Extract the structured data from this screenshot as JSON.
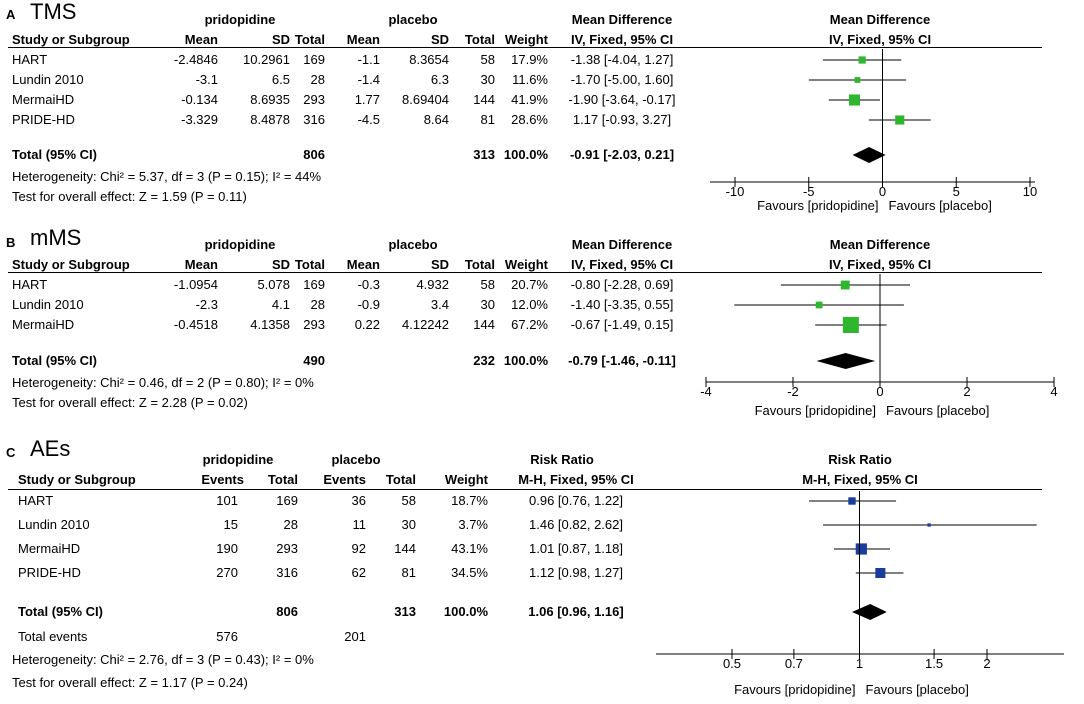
{
  "chart_data": [
    {
      "type": "forest",
      "panel": "A",
      "title": "TMS",
      "group1": "pridopidine",
      "group2": "placebo",
      "columns": [
        "Study or Subgroup",
        "Mean",
        "SD",
        "Total",
        "Mean",
        "SD",
        "Total",
        "Weight",
        "IV, Fixed, 95% CI"
      ],
      "effect_header": "Mean Difference",
      "effect_method": "IV, Fixed, 95% CI",
      "studies": [
        {
          "name": "HART",
          "m1": "-2.4846",
          "sd1": "10.2961",
          "n1": "169",
          "m2": "-1.1",
          "sd2": "8.3654",
          "n2": "58",
          "weight": "17.9%",
          "ci": "-1.38 [-4.04, 1.27]",
          "est": -1.38,
          "lo": -4.04,
          "hi": 1.27,
          "w": 17.9
        },
        {
          "name": "Lundin 2010",
          "m1": "-3.1",
          "sd1": "6.5",
          "n1": "28",
          "m2": "-1.4",
          "sd2": "6.3",
          "n2": "30",
          "weight": "11.6%",
          "ci": "-1.70 [-5.00, 1.60]",
          "est": -1.7,
          "lo": -5.0,
          "hi": 1.6,
          "w": 11.6
        },
        {
          "name": "MermaiHD",
          "m1": "-0.134",
          "sd1": "8.6935",
          "n1": "293",
          "m2": "1.77",
          "sd2": "8.69404",
          "n2": "144",
          "weight": "41.9%",
          "ci": "-1.90 [-3.64, -0.17]",
          "est": -1.9,
          "lo": -3.64,
          "hi": -0.17,
          "w": 41.9
        },
        {
          "name": "PRIDE-HD",
          "m1": "-3.329",
          "sd1": "8.4878",
          "n1": "316",
          "m2": "-4.5",
          "sd2": "8.64",
          "n2": "81",
          "weight": "28.6%",
          "ci": "1.17 [-0.93, 3.27]",
          "est": 1.17,
          "lo": -0.93,
          "hi": 3.27,
          "w": 28.6
        }
      ],
      "total": {
        "label": "Total (95% CI)",
        "n1": "806",
        "n2": "313",
        "weight": "100.0%",
        "ci": "-0.91 [-2.03, 0.21]",
        "est": -0.91,
        "lo": -2.03,
        "hi": 0.21
      },
      "heterogeneity": "Heterogeneity: Chi² = 5.37, df = 3 (P = 0.15); I² = 44%",
      "overall": "Test for overall effect: Z = 1.59 (P = 0.11)",
      "axis": {
        "scale": "linear",
        "min": -10,
        "max": 10,
        "ticks": [
          -10,
          -5,
          0,
          5,
          10
        ],
        "tick_labels": [
          "-10",
          "-5",
          "0",
          "5",
          "10"
        ]
      },
      "favours_left": "Favours [pridopidine]",
      "favours_right": "Favours [placebo]"
    },
    {
      "type": "forest",
      "panel": "B",
      "title": "mMS",
      "group1": "pridopidine",
      "group2": "placebo",
      "columns": [
        "Study or Subgroup",
        "Mean",
        "SD",
        "Total",
        "Mean",
        "SD",
        "Total",
        "Weight",
        "IV, Fixed, 95% CI"
      ],
      "effect_header": "Mean Difference",
      "effect_method": "IV, Fixed, 95% CI",
      "studies": [
        {
          "name": "HART",
          "m1": "-1.0954",
          "sd1": "5.078",
          "n1": "169",
          "m2": "-0.3",
          "sd2": "4.932",
          "n2": "58",
          "weight": "20.7%",
          "ci": "-0.80 [-2.28, 0.69]",
          "est": -0.8,
          "lo": -2.28,
          "hi": 0.69,
          "w": 20.7
        },
        {
          "name": "Lundin 2010",
          "m1": "-2.3",
          "sd1": "4.1",
          "n1": "28",
          "m2": "-0.9",
          "sd2": "3.4",
          "n2": "30",
          "weight": "12.0%",
          "ci": "-1.40 [-3.35, 0.55]",
          "est": -1.4,
          "lo": -3.35,
          "hi": 0.55,
          "w": 12.0
        },
        {
          "name": "MermaiHD",
          "m1": "-0.4518",
          "sd1": "4.1358",
          "n1": "293",
          "m2": "0.22",
          "sd2": "4.12242",
          "n2": "144",
          "weight": "67.2%",
          "ci": "-0.67 [-1.49, 0.15]",
          "est": -0.67,
          "lo": -1.49,
          "hi": 0.15,
          "w": 67.2
        }
      ],
      "total": {
        "label": "Total (95% CI)",
        "n1": "490",
        "n2": "232",
        "weight": "100.0%",
        "ci": "-0.79 [-1.46, -0.11]",
        "est": -0.79,
        "lo": -1.46,
        "hi": -0.11
      },
      "heterogeneity": "Heterogeneity: Chi² = 0.46, df = 2 (P = 0.80); I² = 0%",
      "overall": "Test for overall effect: Z = 2.28 (P = 0.02)",
      "axis": {
        "scale": "linear",
        "min": -4,
        "max": 4,
        "ticks": [
          -4,
          -2,
          0,
          2,
          4
        ],
        "tick_labels": [
          "-4",
          "-2",
          "0",
          "2",
          "4"
        ]
      },
      "favours_left": "Favours [pridopidine]",
      "favours_right": "Favours [placebo]"
    },
    {
      "type": "forest",
      "panel": "C",
      "title": "AEs",
      "group1": "pridopidine",
      "group2": "placebo",
      "columns": [
        "Study or Subgroup",
        "Events",
        "Total",
        "Events",
        "Total",
        "Weight",
        "M-H, Fixed, 95% CI"
      ],
      "effect_header": "Risk Ratio",
      "effect_method": "M-H, Fixed, 95% CI",
      "studies": [
        {
          "name": "HART",
          "e1": "101",
          "n1": "169",
          "e2": "36",
          "n2": "58",
          "weight": "18.7%",
          "ci": "0.96 [0.76, 1.22]",
          "est": 0.96,
          "lo": 0.76,
          "hi": 1.22,
          "w": 18.7
        },
        {
          "name": "Lundin 2010",
          "e1": "15",
          "n1": "28",
          "e2": "11",
          "n2": "30",
          "weight": "3.7%",
          "ci": "1.46 [0.82, 2.62]",
          "est": 1.46,
          "lo": 0.82,
          "hi": 2.62,
          "w": 3.7
        },
        {
          "name": "MermaiHD",
          "e1": "190",
          "n1": "293",
          "e2": "92",
          "n2": "144",
          "weight": "43.1%",
          "ci": "1.01 [0.87, 1.18]",
          "est": 1.01,
          "lo": 0.87,
          "hi": 1.18,
          "w": 43.1
        },
        {
          "name": "PRIDE-HD",
          "e1": "270",
          "n1": "316",
          "e2": "62",
          "n2": "81",
          "weight": "34.5%",
          "ci": "1.12 [0.98, 1.27]",
          "est": 1.12,
          "lo": 0.98,
          "hi": 1.27,
          "w": 34.5
        }
      ],
      "total": {
        "label": "Total (95% CI)",
        "n1": "806",
        "n2": "313",
        "weight": "100.0%",
        "ci": "1.06 [0.96, 1.16]",
        "est": 1.06,
        "lo": 0.96,
        "hi": 1.16
      },
      "total_events": {
        "label": "Total events",
        "e1": "576",
        "e2": "201"
      },
      "heterogeneity": "Heterogeneity: Chi² = 2.76, df = 3 (P = 0.43); I² = 0%",
      "overall": "Test for overall effect: Z = 1.17 (P = 0.24)",
      "axis": {
        "scale": "log",
        "min": 0.3,
        "max": 3.2,
        "ticks": [
          0.5,
          0.7,
          1,
          1.5,
          2
        ],
        "tick_labels": [
          "0.5",
          "0.7",
          "1",
          "1.5",
          "2"
        ]
      },
      "favours_left": "Favours [pridopidine]",
      "favours_right": "Favours [placebo]"
    }
  ],
  "colors": {
    "square_md": "#2fb62f",
    "square_rr": "#1a3c9c",
    "diamond": "#000000",
    "line": "#000000"
  }
}
